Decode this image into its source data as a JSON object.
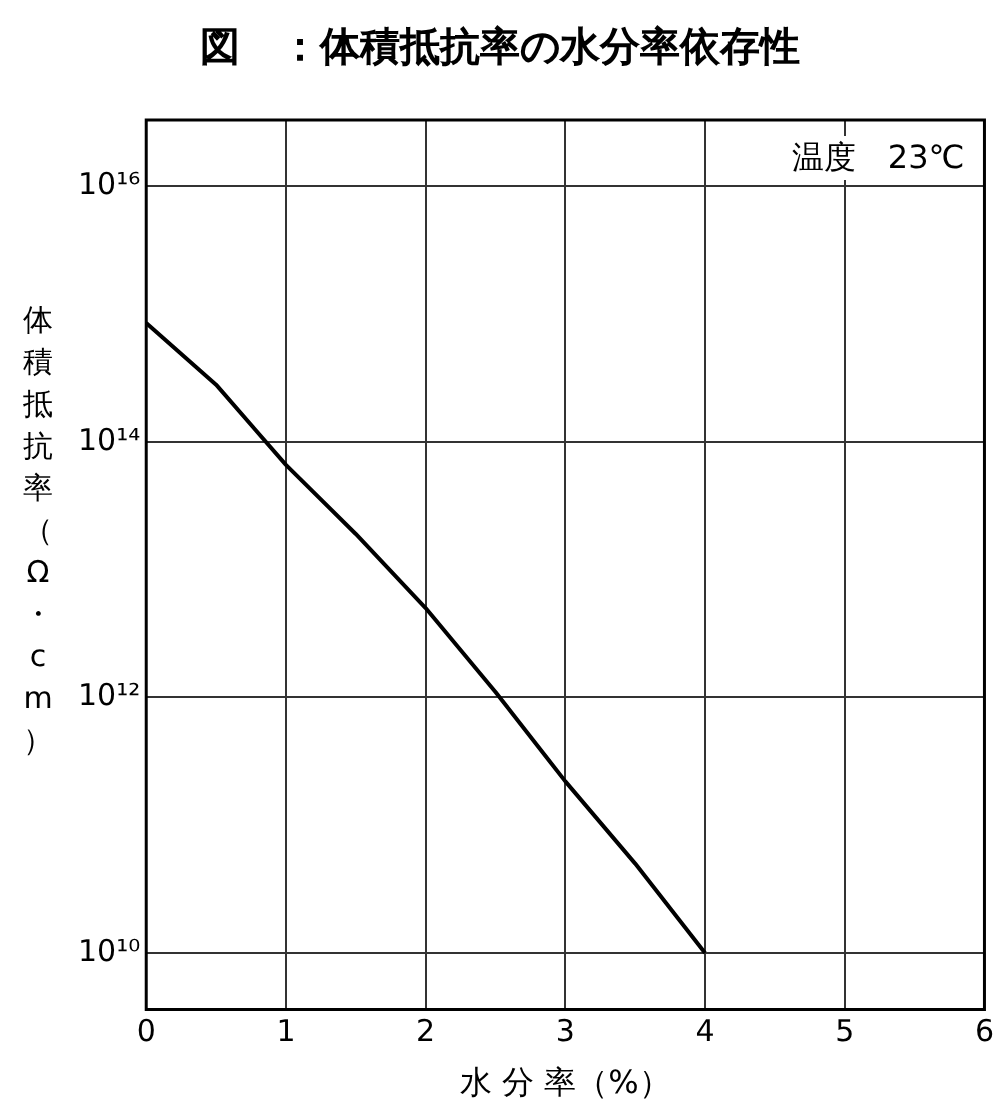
{
  "chart_data": {
    "type": "line",
    "title": "図　：体積抵抗率の水分率依存性",
    "xlabel": "水 分 率（%）",
    "ylabel": "体積抵抗率（Ω・cm）",
    "annotations": [
      "温度　23℃"
    ],
    "x": [
      0,
      0.5,
      1,
      1.5,
      2,
      2.5,
      3,
      3.5,
      4
    ],
    "series": [
      {
        "color": "#000000",
        "values": [
          850000000000000.0,
          280000000000000.0,
          66000000000000.0,
          19000000000000.0,
          5000000000000.0,
          1100000000000.0,
          220000000000.0,
          50000000000.0,
          10000000000.0
        ]
      }
    ],
    "xlim": [
      0,
      6
    ],
    "xticks": [
      0,
      1,
      2,
      3,
      4,
      5,
      6
    ],
    "ylim": [
      3600000000.0,
      3.3e+16
    ],
    "yticks": [
      {
        "value": 10000000000.0,
        "label": "10¹⁰"
      },
      {
        "value": 1000000000000.0,
        "label": "10¹²"
      },
      {
        "value": 100000000000000.0,
        "label": "10¹⁴"
      },
      {
        "value": 1e+16,
        "label": "10¹⁶"
      }
    ],
    "log": "y",
    "grid": true,
    "legend": false,
    "marker": "none",
    "line_style": "solid"
  }
}
